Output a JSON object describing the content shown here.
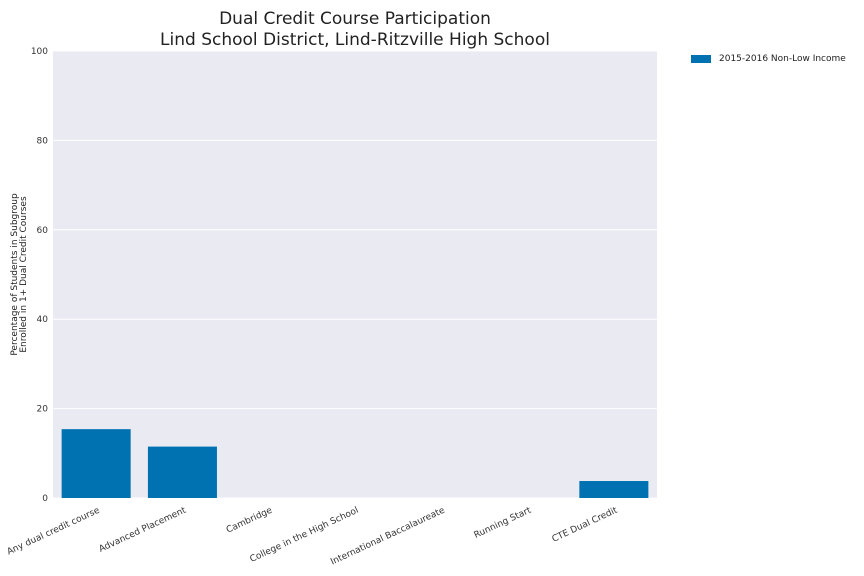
{
  "chart_data": {
    "type": "bar",
    "title_lines": [
      "Dual Credit Course Participation",
      "Lind School District, Lind-Ritzville High School"
    ],
    "ylabel_lines": [
      "Percentage of Students in Subgroup",
      "Enrolled in 1+ Dual Credit Courses"
    ],
    "xlabel": "",
    "categories": [
      "Any dual credit course",
      "Advanced Placement",
      "Cambridge",
      "College in the High School",
      "International Baccalaureate",
      "Running Start",
      "CTE Dual Credit"
    ],
    "series": [
      {
        "name": "2015-2016 Non-Low Income",
        "values": [
          15.4,
          11.5,
          0,
          0,
          0,
          0,
          3.8
        ],
        "color": "#0072B2"
      }
    ],
    "ylim": [
      0,
      100
    ],
    "yticks": [
      0,
      20,
      40,
      60,
      80,
      100
    ],
    "grid": true,
    "background": "#EAEAF2",
    "legend_position": "top-right-outside"
  }
}
